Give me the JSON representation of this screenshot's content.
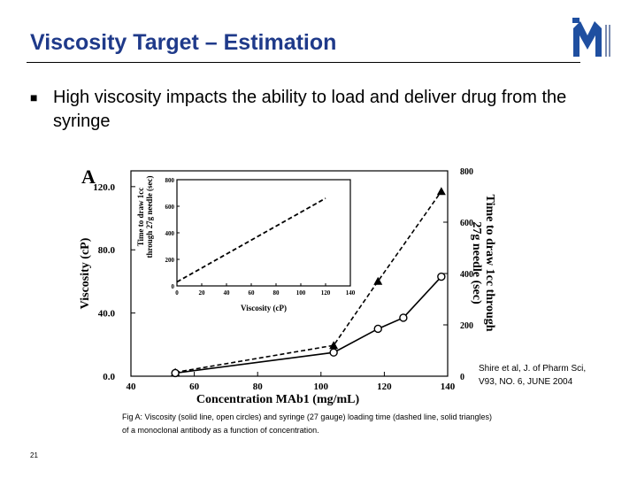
{
  "slide": {
    "title": "Viscosity Target – Estimation",
    "bullet": "High viscosity impacts the ability to load and deliver drug from the syringe",
    "citation_line1": "Shire et al, J. of Pharm Sci,",
    "citation_line2": "V93, NO. 6, JUNE 2004",
    "caption": "Fig A: Viscosity (solid line, open circles) and syringe (27 gauge) loading time (dashed line, solid triangles) of a monoclonal antibody as a function of concentration.",
    "page_number": "21"
  },
  "chart_data": [
    {
      "type": "line",
      "panel_label": "A",
      "xlabel": "Concentration MAb1 (mg/mL)",
      "ylabel": "Viscosity (cP)",
      "y2label_line1": "Time to draw 1cc through",
      "y2label_line2": "27g needle (sec)",
      "xlim": [
        40,
        140
      ],
      "ylim": [
        0,
        130
      ],
      "y2lim": [
        0,
        800
      ],
      "xticks": [
        "40",
        "60",
        "80",
        "100",
        "120",
        "140"
      ],
      "yticks": [
        "0.0",
        "40.0",
        "80.0",
        "120.0"
      ],
      "y2ticks": [
        "0",
        "200",
        "400",
        "600",
        "800"
      ],
      "series": [
        {
          "marker": "open-circle",
          "line": "solid",
          "axis": "left",
          "x": [
            54,
            104,
            118,
            126,
            138
          ],
          "y": [
            2,
            15,
            30,
            37,
            63
          ]
        },
        {
          "marker": "solid-triangle",
          "line": "dashed",
          "axis": "right",
          "x": [
            54,
            104,
            118,
            138
          ],
          "y": [
            15,
            120,
            370,
            720
          ]
        }
      ]
    },
    {
      "type": "line",
      "xlabel": "Viscosity (cP)",
      "ylabel_line1": "Time to draw 1cc",
      "ylabel_line2": "through 27g needle (sec)",
      "xlim": [
        0,
        140
      ],
      "ylim": [
        0,
        800
      ],
      "xticks": [
        "0",
        "20",
        "40",
        "60",
        "80",
        "100",
        "120",
        "140"
      ],
      "yticks": [
        "0",
        "200",
        "400",
        "600",
        "800"
      ],
      "series": [
        {
          "line": "dashed",
          "x": [
            0,
            120
          ],
          "y": [
            30,
            660
          ]
        }
      ]
    }
  ]
}
